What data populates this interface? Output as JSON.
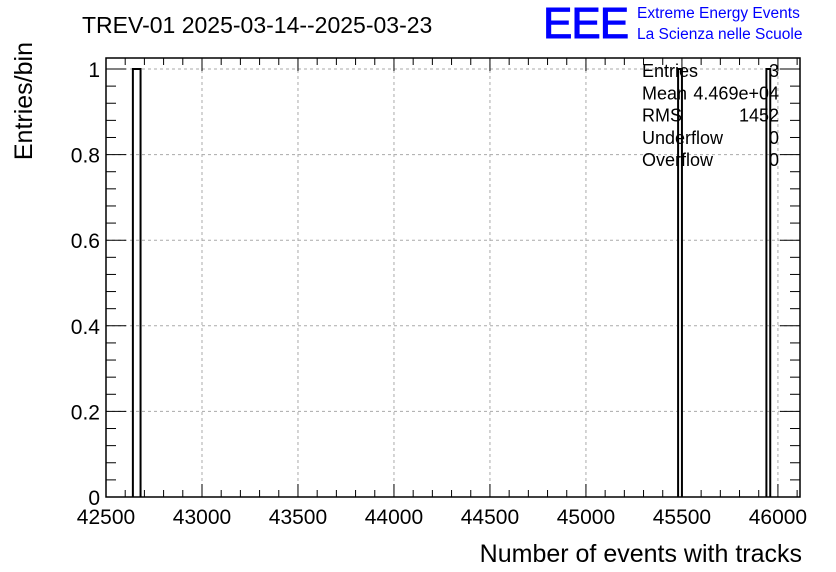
{
  "header": {
    "title": "TREV-01 2025-03-14--2025-03-23",
    "logo_text": "EEE",
    "logo_line1": "Extreme Energy Events",
    "logo_line2": "La Scienza nelle Scuole",
    "logo_color": "#0000ff"
  },
  "stats": {
    "rows": [
      {
        "label": "Entries",
        "value": "3"
      },
      {
        "label": "Mean",
        "value": "4.469e+04"
      },
      {
        "label": "RMS",
        "value": "1452"
      },
      {
        "label": "Underflow",
        "value": "0"
      },
      {
        "label": "Overflow",
        "value": "0"
      }
    ]
  },
  "chart_data": {
    "type": "bar",
    "title": "TREV-01 2025-03-14--2025-03-23",
    "xlabel": "Number of events with tracks",
    "ylabel": "Entries/bin",
    "xlim": [
      42500,
      46100
    ],
    "ylim": [
      0,
      1.05
    ],
    "xticks": [
      42500,
      43000,
      43500,
      44000,
      44500,
      45000,
      45500,
      46000
    ],
    "xtick_labels": [
      "42500",
      "43000",
      "43500",
      "44000",
      "44500",
      "45000",
      "45500",
      "46000"
    ],
    "yticks": [
      0,
      0.2,
      0.4,
      0.6,
      0.8,
      1
    ],
    "ytick_labels": [
      "0",
      "0.2",
      "0.4",
      "0.6",
      "0.8",
      "1"
    ],
    "grid": true,
    "bins": [
      {
        "x0": 42640,
        "x1": 42680,
        "value": 1
      },
      {
        "x0": 45480,
        "x1": 45500,
        "value": 1
      },
      {
        "x0": 45940,
        "x1": 45960,
        "value": 1
      }
    ]
  }
}
